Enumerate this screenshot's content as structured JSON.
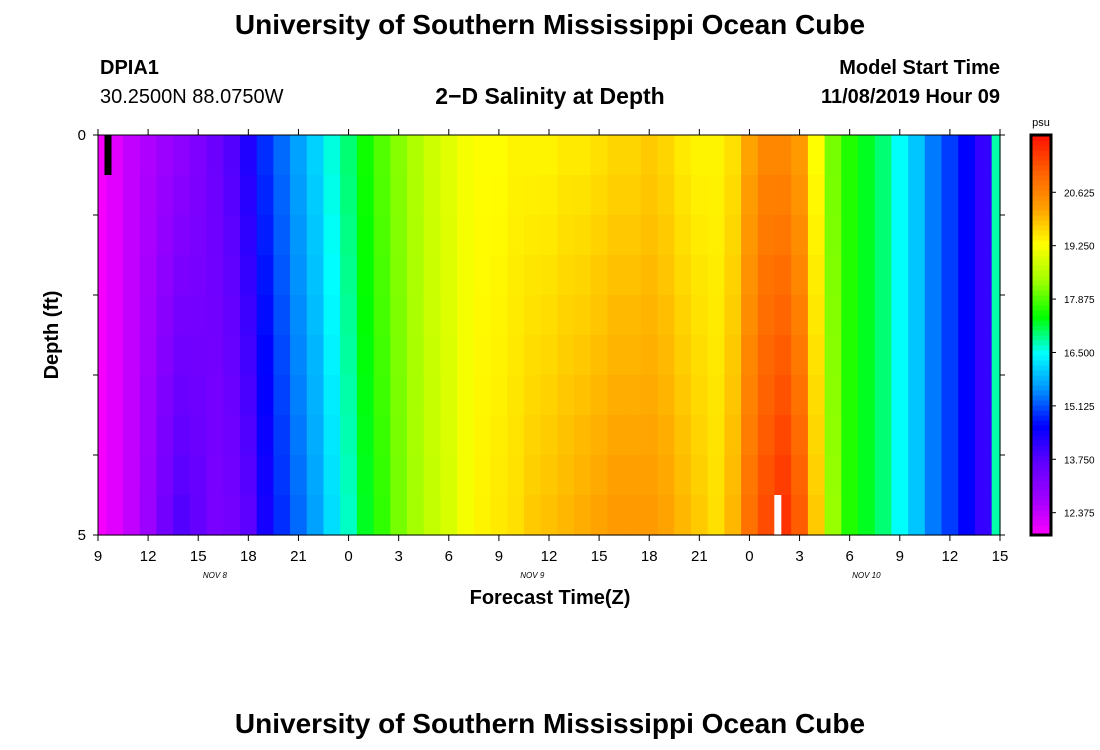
{
  "header": {
    "title": "University of Southern Mississippi Ocean Cube",
    "station_id": "DPIA1",
    "coordinates": "30.2500N 88.0750W",
    "plot_title": "2−D Salinity at Depth",
    "model_start_label": "Model Start Time",
    "model_start_value": "11/08/2019 Hour 09"
  },
  "footer": {
    "title": "University of Southern Mississippi Ocean Cube"
  },
  "chart_data": {
    "type": "heatmap",
    "xlabel": "Forecast Time(Z)",
    "ylabel": "Depth (ft)",
    "x_ticks": [
      "9",
      "12",
      "15",
      "18",
      "21",
      "0",
      "3",
      "6",
      "9",
      "12",
      "15",
      "18",
      "21",
      "0",
      "3",
      "6",
      "9",
      "12",
      "15"
    ],
    "x_hours": [
      9,
      12,
      15,
      18,
      21,
      24,
      27,
      30,
      33,
      36,
      39,
      42,
      45,
      48,
      51,
      54,
      57,
      60,
      63
    ],
    "day_labels": [
      {
        "label": "NOV  8",
        "hour": 16
      },
      {
        "label": "NOV  9",
        "hour": 35
      },
      {
        "label": "NOV  10",
        "hour": 55
      }
    ],
    "y_ticks": [
      "0",
      "5"
    ],
    "ylim": [
      0,
      5
    ],
    "xlim": [
      9,
      63
    ],
    "depth_levels": [
      0.25,
      0.75,
      1.25,
      1.75,
      2.25,
      2.75,
      3.25,
      3.75,
      4.25,
      4.75
    ],
    "profile_hours": [
      9,
      10,
      11,
      12,
      13,
      14,
      15,
      16,
      17,
      18,
      19,
      20,
      21,
      22,
      23,
      24,
      25,
      26,
      27,
      28,
      29,
      30,
      31,
      32,
      33,
      34,
      35,
      36,
      37,
      38,
      39,
      40,
      41,
      42,
      43,
      44,
      45,
      46,
      47,
      48,
      49,
      50,
      51,
      52,
      53,
      54,
      55,
      56,
      57,
      58,
      59,
      60,
      61,
      62,
      63
    ],
    "surface_salinity": [
      11.9,
      12.1,
      12.4,
      12.6,
      12.8,
      13.0,
      13.2,
      13.5,
      13.8,
      14.3,
      14.9,
      15.3,
      15.7,
      16.1,
      16.6,
      17.0,
      17.5,
      17.9,
      18.2,
      18.5,
      18.8,
      19.0,
      19.2,
      19.3,
      19.3,
      19.4,
      19.4,
      19.4,
      19.5,
      19.5,
      19.6,
      19.7,
      19.7,
      19.8,
      19.7,
      19.5,
      19.4,
      19.4,
      19.6,
      20.2,
      20.6,
      20.6,
      20.3,
      19.3,
      18.1,
      17.6,
      17.3,
      17.0,
      16.5,
      16.0,
      15.4,
      15.0,
      14.6,
      14.1,
      16.8
    ],
    "bottom_salinity": [
      11.9,
      12.1,
      12.4,
      12.8,
      13.4,
      13.8,
      13.6,
      13.3,
      13.4,
      13.7,
      14.4,
      14.9,
      15.3,
      15.7,
      16.2,
      16.7,
      17.3,
      17.7,
      18.1,
      18.4,
      18.7,
      18.9,
      19.2,
      19.4,
      19.5,
      19.6,
      19.8,
      19.9,
      20.0,
      20.1,
      20.2,
      20.3,
      20.3,
      20.3,
      20.2,
      20.0,
      19.8,
      19.6,
      20.0,
      20.9,
      21.4,
      21.7,
      21.2,
      19.8,
      18.3,
      17.6,
      17.3,
      17.0,
      16.5,
      16.0,
      15.4,
      15.0,
      14.6,
      14.1,
      16.8
    ],
    "colorbar": {
      "unit": "psu",
      "range": [
        11.8,
        22.1
      ],
      "ticks": [
        "12.375",
        "13.750",
        "15.125",
        "16.500",
        "17.875",
        "19.250",
        "20.625"
      ],
      "tick_values": [
        12.375,
        13.75,
        15.125,
        16.5,
        17.875,
        19.25,
        20.625
      ],
      "colors": [
        "#ff00ff",
        "#a000ff",
        "#6000ff",
        "#0000ff",
        "#0090ff",
        "#00ffff",
        "#00ff00",
        "#a0ff00",
        "#ffff00",
        "#ffa000",
        "#ff6000",
        "#ff1000"
      ]
    },
    "markers": [
      {
        "name": "model-start-marker",
        "color": "#000000",
        "hour": 9.6,
        "depth_from": 0.0,
        "depth_to": 0.5
      },
      {
        "name": "current-time-marker",
        "color": "#ffffff",
        "hour": 49.7,
        "depth_from": 4.5,
        "depth_to": 5.0
      }
    ]
  }
}
